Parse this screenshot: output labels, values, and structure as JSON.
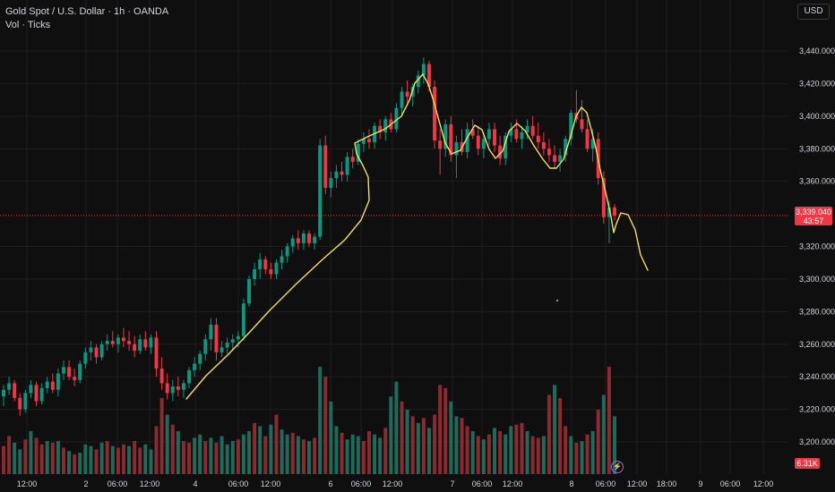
{
  "header": {
    "symbol_title": "Gold Spot / U.S. Dollar · 1h · OANDA",
    "indicator": "Vol · Ticks"
  },
  "currency_button": "USD",
  "last_price": {
    "value": "3,339.040",
    "countdown": "43:57"
  },
  "volume_badge": "6.31K",
  "colors": {
    "background": "#0f0f0f",
    "up": "#089981",
    "down": "#f23645",
    "volume_up": "#1e6b5c",
    "volume_down": "#8e2a2f",
    "annotation": "#f2e15c",
    "grid": "#1e1e1e",
    "text": "#d1d4dc"
  },
  "chart_data": {
    "type": "candlestick",
    "price_axis": {
      "ticks": [
        "3,440.000",
        "3,420.000",
        "3,400.000",
        "3,380.000",
        "3,360.000",
        "3,320.000",
        "3,300.000",
        "3,280.000",
        "3,260.000",
        "3,240.000",
        "3,220.000",
        "3,200.000"
      ],
      "range": [
        3190,
        3465
      ]
    },
    "time_axis": {
      "labels": [
        "12:00",
        "2",
        "06:00",
        "12:00",
        "4",
        "06:00",
        "12:00",
        "6",
        "06:00",
        "12:00",
        "7",
        "06:00",
        "12:00",
        "8",
        "06:00",
        "12:00",
        "18:00",
        "9",
        "06:00",
        "12:00"
      ]
    },
    "candles": [
      [
        3228,
        3235,
        3222,
        3232
      ],
      [
        3232,
        3240,
        3229,
        3236
      ],
      [
        3236,
        3238,
        3225,
        3227
      ],
      [
        3227,
        3230,
        3216,
        3220
      ],
      [
        3220,
        3232,
        3218,
        3230
      ],
      [
        3230,
        3238,
        3227,
        3235
      ],
      [
        3235,
        3237,
        3222,
        3225
      ],
      [
        3225,
        3236,
        3223,
        3233
      ],
      [
        3233,
        3240,
        3230,
        3237
      ],
      [
        3237,
        3242,
        3230,
        3232
      ],
      [
        3232,
        3245,
        3228,
        3242
      ],
      [
        3242,
        3250,
        3238,
        3246
      ],
      [
        3246,
        3250,
        3238,
        3240
      ],
      [
        3240,
        3245,
        3234,
        3238
      ],
      [
        3238,
        3250,
        3236,
        3248
      ],
      [
        3248,
        3258,
        3245,
        3255
      ],
      [
        3255,
        3262,
        3250,
        3258
      ],
      [
        3258,
        3260,
        3248,
        3252
      ],
      [
        3252,
        3262,
        3250,
        3260
      ],
      [
        3260,
        3266,
        3256,
        3262
      ],
      [
        3262,
        3268,
        3258,
        3260
      ],
      [
        3260,
        3266,
        3255,
        3264
      ],
      [
        3264,
        3270,
        3258,
        3262
      ],
      [
        3262,
        3268,
        3256,
        3260
      ],
      [
        3260,
        3265,
        3252,
        3256
      ],
      [
        3256,
        3266,
        3254,
        3263
      ],
      [
        3263,
        3268,
        3256,
        3258
      ],
      [
        3258,
        3266,
        3254,
        3264
      ],
      [
        3264,
        3268,
        3240,
        3245
      ],
      [
        3245,
        3252,
        3232,
        3236
      ],
      [
        3236,
        3242,
        3226,
        3230
      ],
      [
        3230,
        3238,
        3225,
        3234
      ],
      [
        3234,
        3240,
        3228,
        3232
      ],
      [
        3232,
        3238,
        3227,
        3236
      ],
      [
        3236,
        3246,
        3233,
        3244
      ],
      [
        3244,
        3252,
        3240,
        3248
      ],
      [
        3248,
        3256,
        3244,
        3254
      ],
      [
        3254,
        3266,
        3250,
        3263
      ],
      [
        3263,
        3276,
        3256,
        3272
      ],
      [
        3272,
        3276,
        3250,
        3255
      ],
      [
        3255,
        3262,
        3252,
        3258
      ],
      [
        3258,
        3264,
        3254,
        3261
      ],
      [
        3261,
        3266,
        3256,
        3263
      ],
      [
        3263,
        3268,
        3258,
        3265
      ],
      [
        3265,
        3288,
        3262,
        3285
      ],
      [
        3285,
        3302,
        3283,
        3300
      ],
      [
        3300,
        3310,
        3296,
        3306
      ],
      [
        3306,
        3316,
        3300,
        3312
      ],
      [
        3312,
        3314,
        3303,
        3306
      ],
      [
        3306,
        3310,
        3300,
        3303
      ],
      [
        3303,
        3312,
        3300,
        3310
      ],
      [
        3310,
        3318,
        3306,
        3314
      ],
      [
        3314,
        3322,
        3310,
        3320
      ],
      [
        3320,
        3327,
        3316,
        3325
      ],
      [
        3325,
        3330,
        3318,
        3322
      ],
      [
        3322,
        3330,
        3318,
        3328
      ],
      [
        3328,
        3330,
        3320,
        3322
      ],
      [
        3322,
        3328,
        3318,
        3326
      ],
      [
        3326,
        3386,
        3324,
        3382
      ],
      [
        3382,
        3388,
        3352,
        3356
      ],
      [
        3356,
        3366,
        3350,
        3362
      ],
      [
        3362,
        3370,
        3356,
        3366
      ],
      [
        3366,
        3372,
        3360,
        3364
      ],
      [
        3364,
        3378,
        3360,
        3375
      ],
      [
        3375,
        3380,
        3368,
        3372
      ],
      [
        3372,
        3386,
        3370,
        3383
      ],
      [
        3383,
        3390,
        3378,
        3386
      ],
      [
        3386,
        3392,
        3380,
        3384
      ],
      [
        3384,
        3396,
        3380,
        3394
      ],
      [
        3394,
        3398,
        3386,
        3390
      ],
      [
        3390,
        3400,
        3385,
        3398
      ],
      [
        3398,
        3402,
        3390,
        3392
      ],
      [
        3392,
        3408,
        3390,
        3405
      ],
      [
        3405,
        3418,
        3400,
        3415
      ],
      [
        3415,
        3422,
        3408,
        3412
      ],
      [
        3412,
        3420,
        3406,
        3418
      ],
      [
        3418,
        3428,
        3414,
        3425
      ],
      [
        3425,
        3436,
        3420,
        3432
      ],
      [
        3432,
        3434,
        3415,
        3418
      ],
      [
        3418,
        3422,
        3380,
        3385
      ],
      [
        3385,
        3392,
        3364,
        3380
      ],
      [
        3380,
        3398,
        3375,
        3395
      ],
      [
        3395,
        3400,
        3372,
        3376
      ],
      [
        3376,
        3388,
        3362,
        3384
      ],
      [
        3384,
        3392,
        3376,
        3378
      ],
      [
        3378,
        3396,
        3374,
        3392
      ],
      [
        3392,
        3398,
        3386,
        3388
      ],
      [
        3388,
        3394,
        3376,
        3380
      ],
      [
        3380,
        3390,
        3374,
        3386
      ],
      [
        3386,
        3396,
        3382,
        3392
      ],
      [
        3392,
        3396,
        3378,
        3382
      ],
      [
        3382,
        3388,
        3370,
        3374
      ],
      [
        3374,
        3390,
        3370,
        3388
      ],
      [
        3388,
        3396,
        3384,
        3392
      ],
      [
        3392,
        3398,
        3384,
        3386
      ],
      [
        3386,
        3394,
        3380,
        3390
      ],
      [
        3390,
        3398,
        3386,
        3394
      ],
      [
        3394,
        3400,
        3386,
        3388
      ],
      [
        3388,
        3396,
        3380,
        3384
      ],
      [
        3384,
        3390,
        3376,
        3380
      ],
      [
        3380,
        3386,
        3372,
        3376
      ],
      [
        3376,
        3382,
        3368,
        3372
      ],
      [
        3372,
        3380,
        3366,
        3376
      ],
      [
        3376,
        3388,
        3372,
        3386
      ],
      [
        3386,
        3404,
        3382,
        3402
      ],
      [
        3402,
        3416,
        3396,
        3398
      ],
      [
        3398,
        3410,
        3390,
        3392
      ],
      [
        3392,
        3398,
        3378,
        3380
      ],
      [
        3380,
        3392,
        3372,
        3386
      ],
      [
        3386,
        3390,
        3358,
        3362
      ],
      [
        3362,
        3366,
        3334,
        3338
      ],
      [
        3338,
        3348,
        3322,
        3344
      ],
      [
        3344,
        3346,
        3336,
        3339
      ]
    ],
    "volumes": [
      [
        34,
        0
      ],
      [
        46,
        0
      ],
      [
        38,
        1
      ],
      [
        30,
        1
      ],
      [
        42,
        0
      ],
      [
        52,
        1
      ],
      [
        44,
        0
      ],
      [
        36,
        0
      ],
      [
        40,
        1
      ],
      [
        38,
        0
      ],
      [
        40,
        1
      ],
      [
        32,
        0
      ],
      [
        28,
        1
      ],
      [
        24,
        0
      ],
      [
        26,
        1
      ],
      [
        36,
        1
      ],
      [
        34,
        1
      ],
      [
        30,
        0
      ],
      [
        38,
        1
      ],
      [
        40,
        0
      ],
      [
        34,
        1
      ],
      [
        32,
        0
      ],
      [
        36,
        0
      ],
      [
        34,
        1
      ],
      [
        40,
        0
      ],
      [
        32,
        0
      ],
      [
        36,
        1
      ],
      [
        30,
        1
      ],
      [
        58,
        0
      ],
      [
        92,
        0
      ],
      [
        72,
        1
      ],
      [
        60,
        0
      ],
      [
        52,
        1
      ],
      [
        40,
        0
      ],
      [
        38,
        0
      ],
      [
        44,
        1
      ],
      [
        48,
        1
      ],
      [
        40,
        0
      ],
      [
        44,
        1
      ],
      [
        38,
        0
      ],
      [
        46,
        1
      ],
      [
        36,
        1
      ],
      [
        40,
        1
      ],
      [
        42,
        0
      ],
      [
        48,
        1
      ],
      [
        52,
        1
      ],
      [
        62,
        0
      ],
      [
        58,
        1
      ],
      [
        46,
        0
      ],
      [
        60,
        1
      ],
      [
        72,
        0
      ],
      [
        54,
        1
      ],
      [
        48,
        1
      ],
      [
        50,
        0
      ],
      [
        46,
        1
      ],
      [
        42,
        0
      ],
      [
        40,
        1
      ],
      [
        44,
        0
      ],
      [
        130,
        1
      ],
      [
        118,
        0
      ],
      [
        88,
        1
      ],
      [
        58,
        1
      ],
      [
        50,
        0
      ],
      [
        42,
        1
      ],
      [
        48,
        1
      ],
      [
        46,
        1
      ],
      [
        40,
        0
      ],
      [
        52,
        0
      ],
      [
        48,
        1
      ],
      [
        44,
        1
      ],
      [
        56,
        0
      ],
      [
        94,
        1
      ],
      [
        112,
        1
      ],
      [
        88,
        0
      ],
      [
        78,
        1
      ],
      [
        70,
        0
      ],
      [
        62,
        1
      ],
      [
        68,
        0
      ],
      [
        56,
        1
      ],
      [
        72,
        0
      ],
      [
        108,
        0
      ],
      [
        104,
        0
      ],
      [
        88,
        1
      ],
      [
        70,
        1
      ],
      [
        68,
        0
      ],
      [
        58,
        0
      ],
      [
        52,
        1
      ],
      [
        46,
        0
      ],
      [
        42,
        1
      ],
      [
        48,
        0
      ],
      [
        56,
        1
      ],
      [
        52,
        0
      ],
      [
        48,
        1
      ],
      [
        58,
        1
      ],
      [
        60,
        0
      ],
      [
        62,
        0
      ],
      [
        52,
        1
      ],
      [
        46,
        0
      ],
      [
        44,
        0
      ],
      [
        46,
        1
      ],
      [
        96,
        0
      ],
      [
        108,
        1
      ],
      [
        92,
        0
      ],
      [
        58,
        0
      ],
      [
        46,
        1
      ],
      [
        38,
        0
      ],
      [
        40,
        1
      ],
      [
        48,
        0
      ],
      [
        52,
        1
      ],
      [
        78,
        0
      ],
      [
        96,
        1
      ],
      [
        130,
        0
      ],
      [
        70,
        1
      ]
    ]
  }
}
